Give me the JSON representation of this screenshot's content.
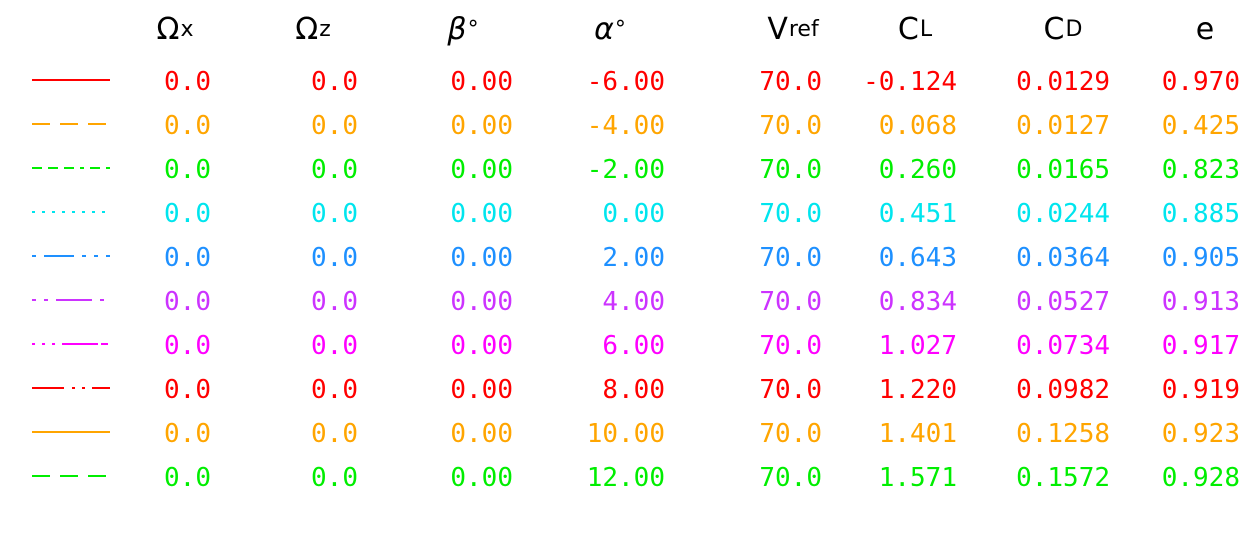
{
  "chart_data": {
    "type": "table",
    "columns": [
      {
        "key": "omega_x",
        "label": "Ω",
        "sub": "x"
      },
      {
        "key": "omega_z",
        "label": "Ω",
        "sub": "z"
      },
      {
        "key": "beta",
        "label": "β",
        "sup": "°"
      },
      {
        "key": "alpha",
        "label": "α",
        "sup": "°"
      },
      {
        "key": "v_ref",
        "label": "V",
        "sub": "ref"
      },
      {
        "key": "cl",
        "label": "C",
        "sub": "L"
      },
      {
        "key": "cd",
        "label": "C",
        "sub": "D"
      },
      {
        "key": "e",
        "label": "e"
      }
    ],
    "rows": [
      {
        "color": "#ff0000",
        "dash": "solid",
        "omega_x": "0.0",
        "omega_z": "0.0",
        "beta": "0.00",
        "alpha": "-6.00",
        "v_ref": "70.0",
        "cl": "-0.124",
        "cd": "0.0129",
        "e": "0.970"
      },
      {
        "color": "#ffa500",
        "dash": "long-dash",
        "omega_x": "0.0",
        "omega_z": "0.0",
        "beta": "0.00",
        "alpha": "-4.00",
        "v_ref": "70.0",
        "cl": "0.068",
        "cd": "0.0127",
        "e": "0.425"
      },
      {
        "color": "#00ee00",
        "dash": "dash-dot",
        "omega_x": "0.0",
        "omega_z": "0.0",
        "beta": "0.00",
        "alpha": "-2.00",
        "v_ref": "70.0",
        "cl": "0.260",
        "cd": "0.0165",
        "e": "0.823"
      },
      {
        "color": "#00e5ee",
        "dash": "dotted",
        "omega_x": "0.0",
        "omega_z": "0.0",
        "beta": "0.00",
        "alpha": "0.00",
        "v_ref": "70.0",
        "cl": "0.451",
        "cd": "0.0244",
        "e": "0.885"
      },
      {
        "color": "#1e90ff",
        "dash": "dot-long-dot",
        "omega_x": "0.0",
        "omega_z": "0.0",
        "beta": "0.00",
        "alpha": "2.00",
        "v_ref": "70.0",
        "cl": "0.643",
        "cd": "0.0364",
        "e": "0.905"
      },
      {
        "color": "#cc33ff",
        "dash": "dot-dot-long",
        "omega_x": "0.0",
        "omega_z": "0.0",
        "beta": "0.00",
        "alpha": "4.00",
        "v_ref": "70.0",
        "cl": "0.834",
        "cd": "0.0527",
        "e": "0.913"
      },
      {
        "color": "#ff00ff",
        "dash": "dots-long",
        "omega_x": "0.0",
        "omega_z": "0.0",
        "beta": "0.00",
        "alpha": "6.00",
        "v_ref": "70.0",
        "cl": "1.027",
        "cd": "0.0734",
        "e": "0.917"
      },
      {
        "color": "#ff0000",
        "dash": "long-dots",
        "omega_x": "0.0",
        "omega_z": "0.0",
        "beta": "0.00",
        "alpha": "8.00",
        "v_ref": "70.0",
        "cl": "1.220",
        "cd": "0.0982",
        "e": "0.919"
      },
      {
        "color": "#ffa500",
        "dash": "solid",
        "omega_x": "0.0",
        "omega_z": "0.0",
        "beta": "0.00",
        "alpha": "10.00",
        "v_ref": "70.0",
        "cl": "1.401",
        "cd": "0.1258",
        "e": "0.923"
      },
      {
        "color": "#00ee00",
        "dash": "long-dash",
        "omega_x": "0.0",
        "omega_z": "0.0",
        "beta": "0.00",
        "alpha": "12.00",
        "v_ref": "70.0",
        "cl": "1.571",
        "cd": "0.1572",
        "e": "0.928"
      }
    ]
  }
}
